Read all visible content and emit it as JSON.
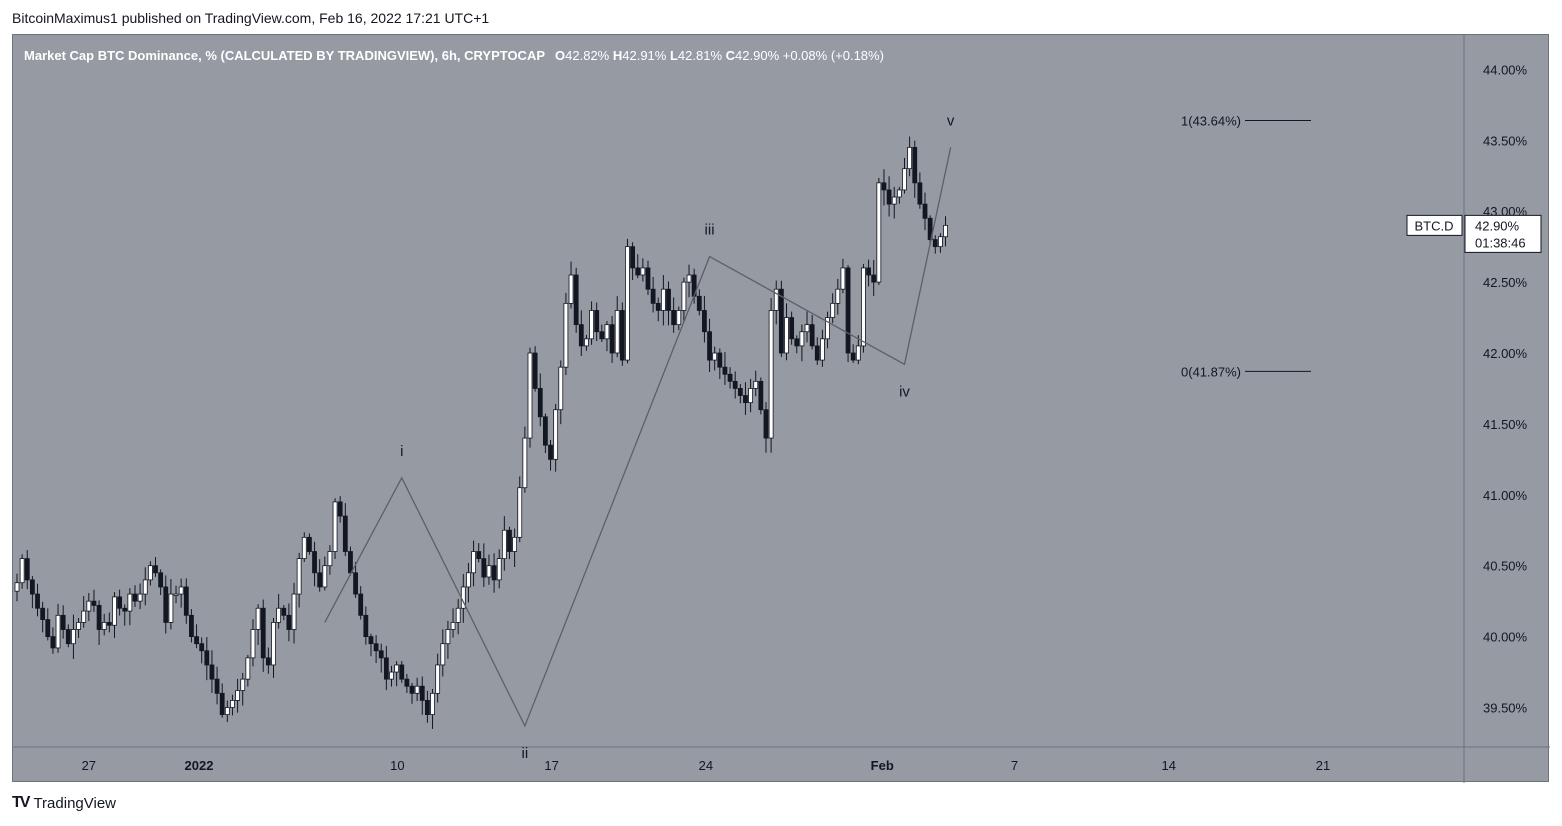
{
  "header": {
    "published_text": "BitcoinMaximus1 published on TradingView.com, Feb 16, 2022 17:21 UTC+1"
  },
  "footer": {
    "brand_text": "TradingView"
  },
  "colors": {
    "background": "#959aa3",
    "up_candle": "#ffffff",
    "down_candle": "#131722",
    "wave_line": "#5d6068",
    "axis_text": "#131722"
  },
  "chart_data": {
    "type": "candlestick",
    "title": "Market Cap BTC Dominance, % (CALCULATED BY TRADINGVIEW), 6h, CRYPTOCAP",
    "ohlc": {
      "open_label": "O",
      "open": "42.82%",
      "high_label": "H",
      "high": "42.91%",
      "low_label": "L",
      "low": "42.81%",
      "close_label": "C",
      "close": "42.90%",
      "change": "+0.08% (+0.18%)"
    },
    "ylim": [
      39.1,
      44.05
    ],
    "y_ticks": [
      "44.00%",
      "43.50%",
      "43.00%",
      "42.50%",
      "42.00%",
      "41.50%",
      "41.00%",
      "40.50%",
      "40.00%",
      "39.50%"
    ],
    "y_tick_values": [
      44.0,
      43.5,
      43.0,
      42.5,
      42.0,
      41.5,
      41.0,
      40.5,
      40.0,
      39.5
    ],
    "x_ticks": [
      "27",
      "2022",
      "10",
      "17",
      "24",
      "Feb",
      "7",
      "14",
      "21"
    ],
    "x_tick_days": [
      -5,
      0,
      9,
      16,
      23,
      31,
      37,
      44,
      51
    ],
    "price_label": {
      "symbol": "BTC.D",
      "value": "42.90%",
      "countdown": "01:38:46",
      "price": 42.9
    },
    "closes": [
      40.38,
      40.55,
      40.4,
      40.3,
      40.2,
      40.12,
      40.0,
      39.92,
      40.15,
      40.05,
      39.95,
      40.05,
      40.1,
      40.18,
      40.25,
      40.22,
      40.05,
      40.1,
      40.08,
      40.28,
      40.2,
      40.18,
      40.3,
      40.25,
      40.3,
      40.4,
      40.5,
      40.45,
      40.35,
      40.1,
      40.3,
      40.3,
      40.35,
      40.15,
      40.0,
      39.95,
      39.9,
      39.8,
      39.7,
      39.6,
      39.45,
      39.5,
      39.55,
      39.62,
      39.7,
      39.85,
      40.05,
      40.2,
      39.85,
      39.8,
      40.1,
      40.2,
      40.15,
      40.05,
      40.3,
      40.55,
      40.7,
      40.6,
      40.45,
      40.35,
      40.5,
      40.6,
      40.95,
      40.85,
      40.6,
      40.45,
      40.3,
      40.15,
      40.0,
      39.95,
      39.9,
      39.85,
      39.7,
      39.75,
      39.8,
      39.7,
      39.65,
      39.6,
      39.65,
      39.55,
      39.45,
      39.6,
      39.8,
      39.95,
      40.05,
      40.1,
      40.2,
      40.35,
      40.45,
      40.6,
      40.55,
      40.42,
      40.5,
      40.4,
      40.55,
      40.75,
      40.6,
      40.7,
      41.05,
      41.4,
      42.0,
      41.75,
      41.55,
      41.35,
      41.25,
      41.6,
      41.9,
      42.35,
      42.55,
      42.2,
      42.05,
      42.1,
      42.3,
      42.15,
      42.1,
      42.2,
      42.0,
      42.3,
      41.95,
      42.75,
      42.6,
      42.55,
      42.6,
      42.45,
      42.35,
      42.3,
      42.45,
      42.3,
      42.2,
      42.3,
      42.5,
      42.55,
      42.4,
      42.3,
      42.15,
      41.95,
      42.0,
      41.9,
      41.85,
      41.8,
      41.75,
      41.7,
      41.65,
      41.75,
      41.8,
      41.6,
      41.4,
      42.3,
      42.45,
      42.0,
      42.25,
      42.1,
      42.05,
      42.15,
      42.2,
      42.05,
      41.95,
      42.1,
      42.25,
      42.35,
      42.45,
      42.6,
      42.0,
      41.95,
      42.05,
      42.6,
      42.55,
      42.5,
      43.2,
      43.15,
      43.05,
      43.1,
      43.15,
      43.3,
      43.45,
      43.2,
      43.05,
      42.95,
      42.8,
      42.75,
      42.82,
      42.9
    ],
    "elliott_waves": [
      {
        "label": "i",
        "value": 41.12
      },
      {
        "label": "ii",
        "value": 39.37
      },
      {
        "label": "iii",
        "value": 42.68
      },
      {
        "label": "iv",
        "value": 41.92
      },
      {
        "label": "v",
        "value": 43.45
      }
    ],
    "fib_levels": [
      {
        "label": "1(43.64%)",
        "value": 43.64
      },
      {
        "label": "0(41.87%)",
        "value": 41.87
      }
    ]
  }
}
